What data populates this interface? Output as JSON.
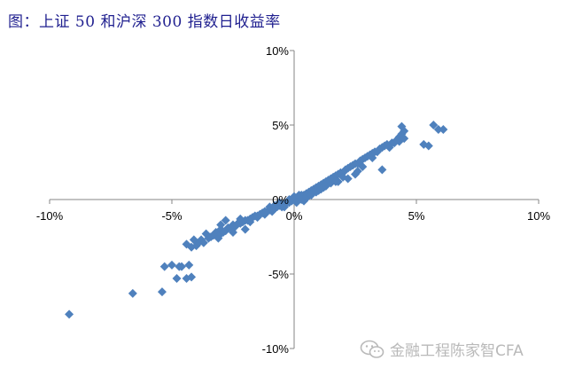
{
  "title": "图：上证 50 和沪深 300 指数日收益率",
  "watermark": "金融工程陈家智CFA",
  "colors": {
    "marker": "#4f81bd",
    "axis": "#868686",
    "title": "#1f1f8f",
    "watermark": "#b9b9b9"
  },
  "chart_data": {
    "type": "scatter",
    "title": "图：上证 50 和沪深 300 指数日收益率",
    "xlabel": "",
    "ylabel": "",
    "xlim": [
      -0.1,
      0.1
    ],
    "ylim": [
      -0.1,
      0.1
    ],
    "x_ticks": [
      -0.1,
      -0.05,
      0,
      0.05,
      0.1
    ],
    "x_tick_labels": [
      "-10%",
      "-5%",
      "0%",
      "5%",
      "10%"
    ],
    "y_ticks": [
      0.1,
      0.05,
      0,
      -0.05,
      -0.1
    ],
    "y_tick_labels": [
      "10%",
      "5%",
      "0%",
      "-5%",
      "-10%"
    ],
    "grid": false,
    "legend": "none",
    "marker": "diamond",
    "series": [
      {
        "x": [
          -0.092,
          -0.066,
          -0.054,
          -0.053,
          -0.05,
          -0.047,
          -0.044,
          -0.042,
          -0.048,
          -0.046,
          -0.043,
          -0.044,
          -0.042,
          -0.04,
          -0.039,
          -0.041,
          -0.038,
          -0.037,
          -0.035,
          -0.034,
          -0.036,
          -0.033,
          -0.032,
          -0.031,
          -0.03,
          -0.03,
          -0.029,
          -0.028,
          -0.027,
          -0.026,
          -0.025,
          -0.024,
          -0.023,
          -0.022,
          -0.021,
          -0.02,
          -0.019,
          -0.018,
          -0.017,
          -0.016,
          -0.015,
          -0.014,
          -0.013,
          -0.012,
          -0.011,
          -0.01,
          -0.009,
          -0.008,
          -0.007,
          -0.006,
          -0.005,
          -0.004,
          -0.003,
          -0.002,
          -0.001,
          0.0,
          0.001,
          0.002,
          0.003,
          0.004,
          0.005,
          0.006,
          0.007,
          0.008,
          0.009,
          0.01,
          0.011,
          0.012,
          0.013,
          0.014,
          0.015,
          0.016,
          0.017,
          0.018,
          0.019,
          0.02,
          0.021,
          0.022,
          0.023,
          0.024,
          0.025,
          0.026,
          0.027,
          0.028,
          0.029,
          0.03,
          0.031,
          0.032,
          0.033,
          0.034,
          0.035,
          0.036,
          0.037,
          0.038,
          0.04,
          0.041,
          0.043,
          0.044,
          0.045,
          0.043,
          0.044,
          0.045,
          0.042,
          0.039,
          0.036,
          0.053,
          0.055,
          0.057,
          0.059,
          0.061,
          -0.02,
          -0.018,
          -0.015,
          -0.012,
          -0.01,
          -0.005,
          0.0,
          0.005,
          0.008,
          0.01,
          0.012,
          0.015,
          0.02,
          0.025,
          0.028,
          0.032,
          -0.028,
          -0.03,
          -0.025,
          -0.022,
          -0.004,
          -0.002,
          0.002,
          0.004,
          0.006,
          0.01,
          0.014,
          0.018,
          0.022,
          0.026,
          -0.008,
          -0.006,
          0.001,
          0.003,
          0.005,
          0.007,
          0.009,
          0.011,
          0.013,
          0.017
        ],
        "y": [
          -0.077,
          -0.063,
          -0.062,
          -0.045,
          -0.044,
          -0.045,
          -0.053,
          -0.052,
          -0.053,
          -0.045,
          -0.044,
          -0.03,
          -0.032,
          -0.031,
          -0.029,
          -0.027,
          -0.027,
          -0.029,
          -0.026,
          -0.025,
          -0.023,
          -0.024,
          -0.022,
          -0.026,
          -0.023,
          -0.02,
          -0.022,
          -0.021,
          -0.019,
          -0.019,
          -0.017,
          -0.018,
          -0.016,
          -0.016,
          -0.015,
          -0.014,
          -0.014,
          -0.013,
          -0.012,
          -0.011,
          -0.012,
          -0.01,
          -0.009,
          -0.01,
          -0.008,
          -0.007,
          -0.008,
          -0.006,
          -0.005,
          -0.004,
          -0.005,
          -0.003,
          -0.002,
          -0.002,
          -0.001,
          0.0,
          0.001,
          0.001,
          0.003,
          0.003,
          0.004,
          0.005,
          0.006,
          0.007,
          0.008,
          0.009,
          0.01,
          0.011,
          0.012,
          0.013,
          0.014,
          0.015,
          0.016,
          0.017,
          0.018,
          0.018,
          0.02,
          0.021,
          0.022,
          0.023,
          0.024,
          0.024,
          0.026,
          0.027,
          0.028,
          0.029,
          0.03,
          0.031,
          0.032,
          0.032,
          0.034,
          0.035,
          0.036,
          0.037,
          0.038,
          0.038,
          0.042,
          0.044,
          0.046,
          0.039,
          0.049,
          0.041,
          0.04,
          0.035,
          0.02,
          0.037,
          0.036,
          0.05,
          0.047,
          0.047,
          -0.02,
          -0.015,
          -0.011,
          -0.008,
          -0.005,
          -0.003,
          0.002,
          0.001,
          0.005,
          0.008,
          0.008,
          0.011,
          0.015,
          0.017,
          0.022,
          0.028,
          -0.014,
          -0.017,
          -0.022,
          -0.013,
          -0.005,
          0.0,
          0.003,
          -0.001,
          0.003,
          0.006,
          0.011,
          0.012,
          0.014,
          0.019,
          -0.004,
          -0.002,
          -0.002,
          0.0,
          0.002,
          0.003,
          0.005,
          0.007,
          0.009,
          0.012
        ]
      }
    ]
  }
}
